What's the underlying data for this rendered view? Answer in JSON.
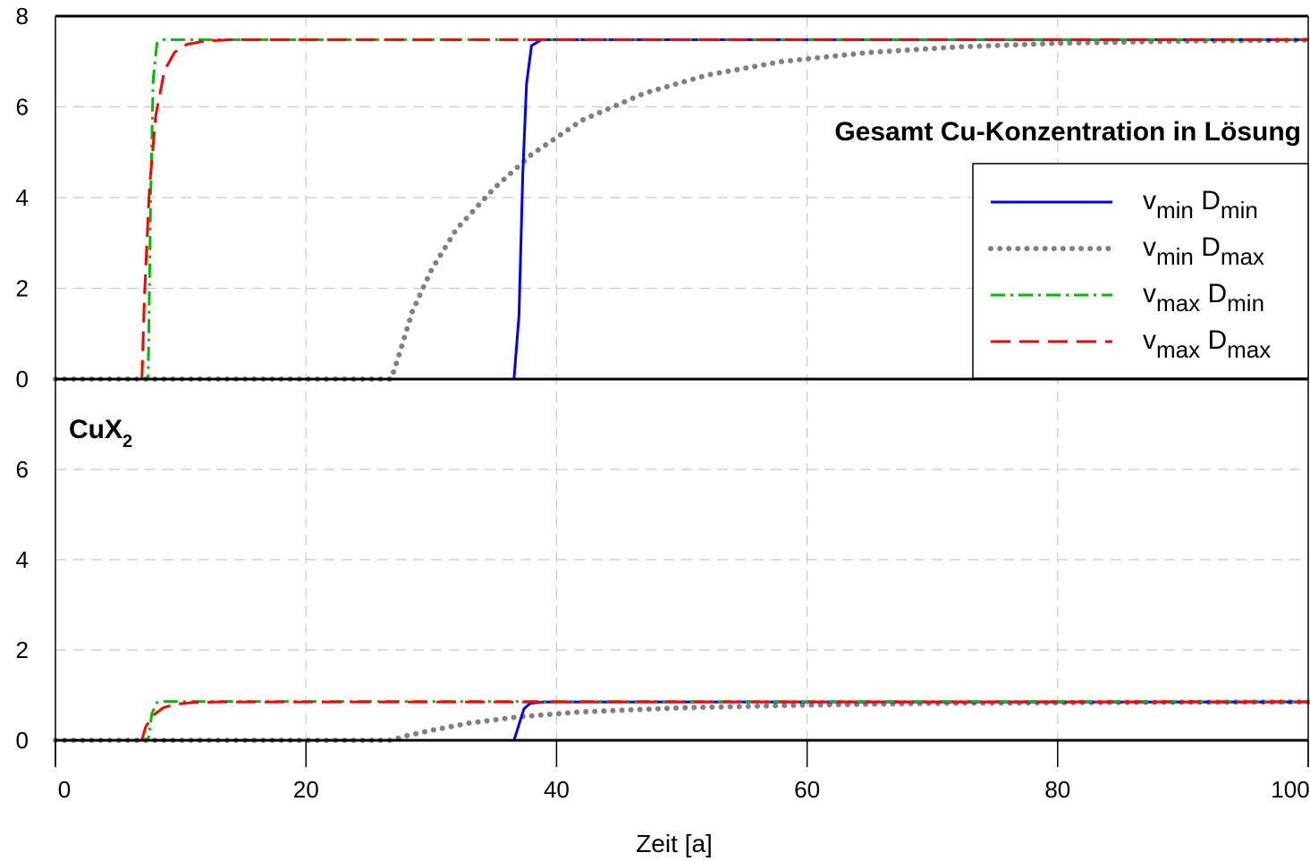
{
  "chart_data": {
    "type": "line",
    "xlabel": "Zeit [a]",
    "xlim": [
      0,
      100
    ],
    "xticks": [
      "0",
      "20",
      "40",
      "60",
      "80",
      "100"
    ],
    "grid": true,
    "panels": [
      {
        "title": "Gesamt Cu-Konzentration in Lösung",
        "ylim": [
          0,
          8
        ],
        "yticks": [
          "0",
          "2",
          "4",
          "6",
          "8"
        ],
        "series": [
          {
            "name": "vmin Dmin",
            "color": "#0000ff",
            "style": "solid",
            "points": [
              [
                0,
                0
              ],
              [
                36.6,
                0
              ],
              [
                37.0,
                1.4
              ],
              [
                37.3,
                4.5
              ],
              [
                37.6,
                6.5
              ],
              [
                38.0,
                7.35
              ],
              [
                38.8,
                7.48
              ],
              [
                100,
                7.48
              ]
            ]
          },
          {
            "name": "vmin Dmax",
            "color": "#808080",
            "style": "dotted",
            "points": [
              [
                0,
                0
              ],
              [
                26.8,
                0
              ],
              [
                27.5,
                0.6
              ],
              [
                28.5,
                1.5
              ],
              [
                30,
                2.4
              ],
              [
                32,
                3.3
              ],
              [
                35,
                4.2
              ],
              [
                38,
                4.95
              ],
              [
                42,
                5.7
              ],
              [
                47,
                6.3
              ],
              [
                52,
                6.7
              ],
              [
                58,
                7.0
              ],
              [
                65,
                7.2
              ],
              [
                72,
                7.32
              ],
              [
                80,
                7.4
              ],
              [
                90,
                7.45
              ],
              [
                100,
                7.47
              ]
            ]
          },
          {
            "name": "vmax Dmin",
            "color": "#00bb00",
            "style": "dashdot",
            "points": [
              [
                0,
                0
              ],
              [
                7.4,
                0
              ],
              [
                7.6,
                4.0
              ],
              [
                7.8,
                6.6
              ],
              [
                8.1,
                7.4
              ],
              [
                8.6,
                7.48
              ],
              [
                100,
                7.48
              ]
            ]
          },
          {
            "name": "vmax Dmax",
            "color": "#ff0000",
            "style": "dashed",
            "points": [
              [
                0,
                0
              ],
              [
                6.9,
                0
              ],
              [
                7.1,
                1.8
              ],
              [
                7.5,
                4.2
              ],
              [
                8.0,
                5.8
              ],
              [
                8.7,
                6.8
              ],
              [
                9.5,
                7.2
              ],
              [
                10.5,
                7.38
              ],
              [
                12,
                7.45
              ],
              [
                14,
                7.48
              ],
              [
                100,
                7.48
              ]
            ]
          }
        ]
      },
      {
        "title": "CuX2",
        "title_main": "CuX",
        "title_sub": "2",
        "ylim": [
          0,
          8
        ],
        "yticks": [
          "0",
          "2",
          "4",
          "6",
          ""
        ],
        "series": [
          {
            "name": "vmin Dmin",
            "color": "#0000ff",
            "style": "solid",
            "points": [
              [
                0,
                0
              ],
              [
                36.6,
                0
              ],
              [
                37.0,
                0.35
              ],
              [
                37.4,
                0.7
              ],
              [
                37.9,
                0.82
              ],
              [
                39,
                0.85
              ],
              [
                100,
                0.85
              ]
            ]
          },
          {
            "name": "vmin Dmax",
            "color": "#808080",
            "style": "dotted",
            "points": [
              [
                0,
                0
              ],
              [
                26.8,
                0
              ],
              [
                28,
                0.1
              ],
              [
                30,
                0.22
              ],
              [
                33,
                0.38
              ],
              [
                37,
                0.52
              ],
              [
                42,
                0.63
              ],
              [
                50,
                0.72
              ],
              [
                60,
                0.78
              ],
              [
                70,
                0.82
              ],
              [
                85,
                0.84
              ],
              [
                100,
                0.85
              ]
            ]
          },
          {
            "name": "vmax Dmin",
            "color": "#00bb00",
            "style": "dashdot",
            "points": [
              [
                0,
                0
              ],
              [
                7.4,
                0
              ],
              [
                7.7,
                0.6
              ],
              [
                8.1,
                0.84
              ],
              [
                8.7,
                0.86
              ],
              [
                100,
                0.86
              ]
            ]
          },
          {
            "name": "vmax Dmax",
            "color": "#ff0000",
            "style": "dashed",
            "points": [
              [
                0,
                0
              ],
              [
                6.9,
                0
              ],
              [
                7.2,
                0.3
              ],
              [
                7.8,
                0.55
              ],
              [
                8.6,
                0.72
              ],
              [
                9.6,
                0.8
              ],
              [
                11,
                0.84
              ],
              [
                13,
                0.85
              ],
              [
                100,
                0.85
              ]
            ]
          }
        ]
      }
    ],
    "legend": {
      "placement": "top-right (upper panel)",
      "entries": [
        {
          "v": "v",
          "v_sub": "min",
          "d": "D",
          "d_sub": "min"
        },
        {
          "v": "v",
          "v_sub": "min",
          "d": "D",
          "d_sub": "max"
        },
        {
          "v": "v",
          "v_sub": "max",
          "d": "D",
          "d_sub": "min"
        },
        {
          "v": "v",
          "v_sub": "max",
          "d": "D",
          "d_sub": "max"
        }
      ]
    }
  }
}
